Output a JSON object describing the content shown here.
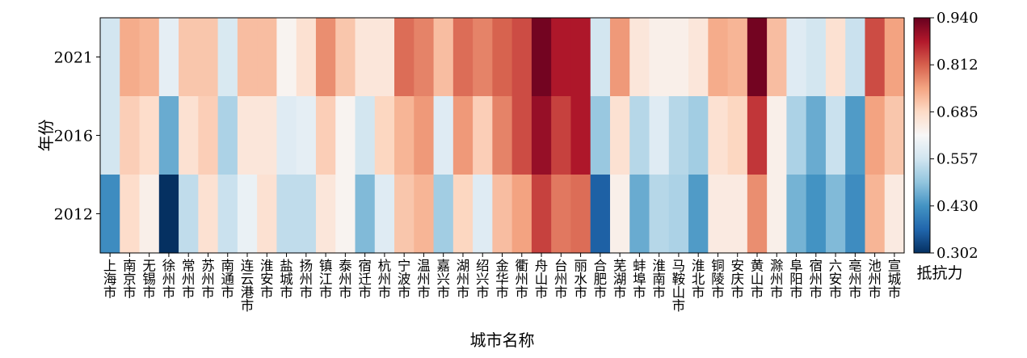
{
  "chart_data": {
    "type": "heatmap",
    "title": "",
    "xlabel": "城市名称",
    "ylabel": "年份",
    "colorbar_label": "抵抗力",
    "colormap": "RdBu_r",
    "range": [
      0.302,
      0.94
    ],
    "colorbar_ticks": [
      "0.940",
      "0.812",
      "0.685",
      "0.557",
      "0.430",
      "0.302"
    ],
    "rows": [
      "2021",
      "2016",
      "2012"
    ],
    "cities": [
      "上海市",
      "南京市",
      "无锡市",
      "徐州市",
      "常州市",
      "苏州市",
      "南通市",
      "连云港市",
      "淮安市",
      "盐城市",
      "扬州市",
      "镇江市",
      "泰州市",
      "宿迁市",
      "杭州市",
      "宁波市",
      "温州市",
      "嘉兴市",
      "湖州市",
      "绍兴市",
      "金华市",
      "衢州市",
      "舟山市",
      "台州市",
      "丽水市",
      "合肥市",
      "芜湖市",
      "蚌埠市",
      "淮南市",
      "马鞍山市",
      "淮北市",
      "铜陵市",
      "安庆市",
      "黄山市",
      "滁州市",
      "阜阳市",
      "宿州市",
      "六安市",
      "亳州市",
      "池州市",
      "宣城市"
    ],
    "values": [
      [
        0.56,
        0.74,
        0.73,
        0.59,
        0.71,
        0.71,
        0.57,
        0.72,
        0.72,
        0.63,
        0.67,
        0.77,
        0.71,
        0.66,
        0.66,
        0.8,
        0.78,
        0.72,
        0.8,
        0.78,
        0.81,
        0.83,
        0.93,
        0.88,
        0.88,
        0.56,
        0.76,
        0.66,
        0.64,
        0.64,
        0.66,
        0.74,
        0.73,
        0.93,
        0.72,
        0.58,
        0.56,
        0.67,
        0.55,
        0.83,
        0.75
      ],
      [
        0.56,
        0.7,
        0.68,
        0.46,
        0.67,
        0.7,
        0.52,
        0.66,
        0.66,
        0.58,
        0.59,
        0.7,
        0.63,
        0.56,
        0.69,
        0.73,
        0.76,
        0.58,
        0.76,
        0.7,
        0.78,
        0.83,
        0.9,
        0.84,
        0.88,
        0.5,
        0.67,
        0.53,
        0.58,
        0.53,
        0.51,
        0.67,
        0.69,
        0.85,
        0.64,
        0.52,
        0.46,
        0.55,
        0.44,
        0.75,
        0.71
      ],
      [
        0.42,
        0.68,
        0.64,
        0.302,
        0.54,
        0.67,
        0.55,
        0.6,
        0.67,
        0.54,
        0.54,
        0.66,
        0.63,
        0.48,
        0.58,
        0.71,
        0.73,
        0.51,
        0.69,
        0.58,
        0.72,
        0.75,
        0.84,
        0.79,
        0.8,
        0.36,
        0.64,
        0.46,
        0.53,
        0.52,
        0.44,
        0.65,
        0.65,
        0.77,
        0.64,
        0.47,
        0.43,
        0.48,
        0.42,
        0.73,
        0.65
      ]
    ]
  }
}
